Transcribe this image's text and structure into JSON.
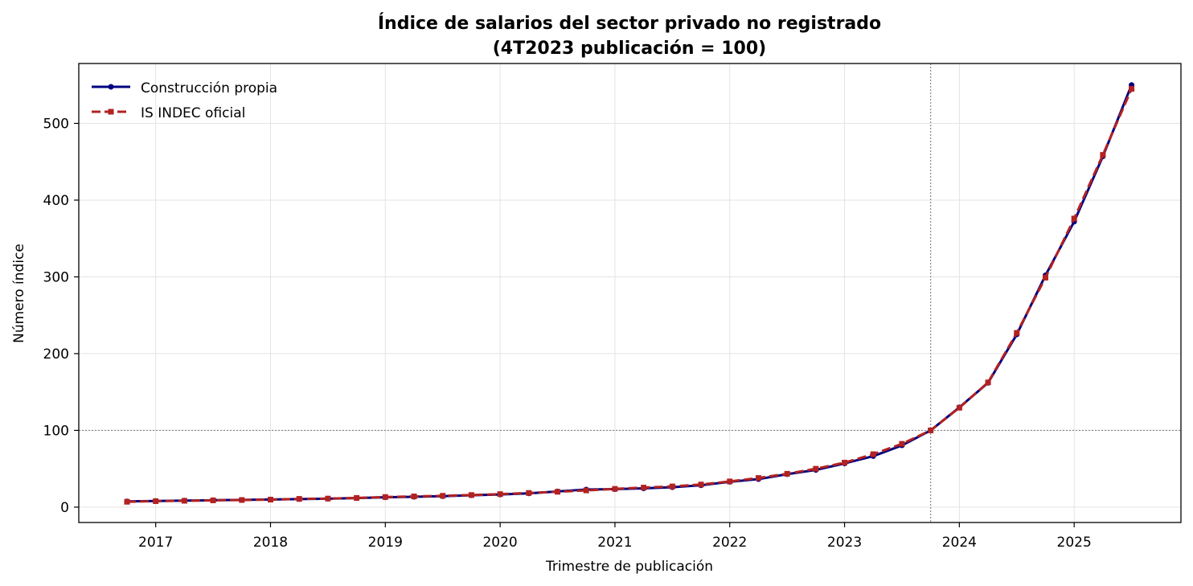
{
  "chart_data": {
    "type": "line",
    "title_line1": "Índice de salarios del sector privado no registrado",
    "title_line2": "(4T2023 publicación = 100)",
    "xlabel": "Trimestre de publicación",
    "ylabel": "Número índice",
    "xlim": [
      2016.33,
      2025.93
    ],
    "ylim": [
      -20,
      578
    ],
    "x_ticks": [
      2017,
      2018,
      2019,
      2020,
      2021,
      2022,
      2023,
      2024,
      2025
    ],
    "x_tick_labels": [
      "2017",
      "2018",
      "2019",
      "2020",
      "2021",
      "2022",
      "2023",
      "2024",
      "2025"
    ],
    "y_ticks": [
      0,
      100,
      200,
      300,
      400,
      500
    ],
    "y_tick_labels": [
      "0",
      "100",
      "200",
      "300",
      "400",
      "500"
    ],
    "grid": true,
    "reference_lines": {
      "horizontal_y": 100,
      "vertical_x": 2023.75
    },
    "legend_position": "upper-left",
    "x": [
      2016.75,
      2017.0,
      2017.25,
      2017.5,
      2017.75,
      2018.0,
      2018.25,
      2018.5,
      2018.75,
      2019.0,
      2019.25,
      2019.5,
      2019.75,
      2020.0,
      2020.25,
      2020.5,
      2020.75,
      2021.0,
      2021.25,
      2021.5,
      2021.75,
      2022.0,
      2022.25,
      2022.5,
      2022.75,
      2023.0,
      2023.25,
      2023.5,
      2023.75,
      2024.0,
      2024.25,
      2024.5,
      2024.75,
      2025.0,
      2025.25,
      2025.5
    ],
    "series": [
      {
        "name": "Construcción propia",
        "color": "#000080",
        "style": "solid",
        "marker": "circle",
        "values": [
          7.5,
          8.0,
          8.5,
          9.0,
          9.5,
          10.0,
          10.5,
          11.0,
          11.8,
          12.8,
          13.5,
          14.3,
          15.5,
          16.5,
          18.0,
          20.5,
          23.0,
          23.5,
          24.5,
          26.0,
          28.5,
          33.0,
          36.5,
          43.0,
          48.5,
          57.0,
          66.5,
          80.5,
          100.0,
          130.0,
          162.0,
          225.0,
          302.0,
          372.0,
          457.0,
          550.0
        ]
      },
      {
        "name": "IS INDEC oficial",
        "color": "#b22222",
        "style": "dashed",
        "marker": "square",
        "values": [
          7.0,
          7.8,
          8.3,
          8.8,
          9.3,
          9.8,
          10.8,
          11.2,
          12.0,
          13.2,
          14.0,
          14.8,
          15.8,
          17.0,
          18.5,
          20.0,
          21.8,
          23.8,
          25.5,
          27.0,
          29.5,
          33.5,
          38.0,
          43.5,
          50.0,
          58.0,
          69.0,
          82.5,
          100.0,
          129.5,
          162.5,
          227.0,
          299.0,
          376.0,
          459.0,
          545.0
        ]
      }
    ]
  }
}
